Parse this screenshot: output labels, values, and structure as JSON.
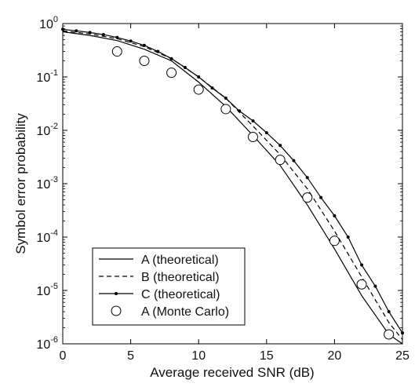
{
  "chart_data": {
    "type": "line",
    "xlabel": "Average received SNR (dB)",
    "ylabel": "Symbol error probability",
    "xlim": [
      0,
      25
    ],
    "ylim": [
      1e-06,
      1
    ],
    "yscale": "log",
    "grid": false,
    "legend_placement": "bottom-left",
    "x_ticks": [
      0,
      5,
      10,
      15,
      20,
      25
    ],
    "x_tick_labels": [
      "0",
      "5",
      "10",
      "15",
      "20",
      "25"
    ],
    "y_ticks": [
      {
        "value": 1,
        "base": "10",
        "exp": "0"
      },
      {
        "value": 0.1,
        "base": "10",
        "exp": "-1"
      },
      {
        "value": 0.01,
        "base": "10",
        "exp": "-2"
      },
      {
        "value": 0.001,
        "base": "10",
        "exp": "-3"
      },
      {
        "value": 0.0001,
        "base": "10",
        "exp": "-4"
      },
      {
        "value": 1e-05,
        "base": "10",
        "exp": "-5"
      },
      {
        "value": 1e-06,
        "base": "10",
        "exp": "-6"
      }
    ],
    "series": [
      {
        "name": "A (theoretical)",
        "style": "solid",
        "x": [
          0,
          2,
          4,
          6,
          8,
          10,
          12,
          14,
          16,
          18,
          20,
          22,
          24,
          25
        ],
        "y": [
          0.7,
          0.6,
          0.48,
          0.33,
          0.2,
          0.08,
          0.028,
          0.008,
          0.0022,
          0.0004,
          6e-05,
          8e-06,
          1.5e-06,
          1e-06
        ]
      },
      {
        "name": "B (theoretical)",
        "style": "dashed",
        "x": [
          0,
          2,
          4,
          6,
          8,
          10,
          12,
          14,
          16,
          18,
          20,
          22,
          24,
          25
        ],
        "y": [
          0.73,
          0.64,
          0.52,
          0.37,
          0.22,
          0.1,
          0.04,
          0.012,
          0.0035,
          0.0008,
          0.00013,
          1.8e-05,
          2.5e-06,
          1.2e-06
        ]
      },
      {
        "name": "C (theoretical)",
        "style": "solid-dot",
        "x": [
          0,
          1,
          2,
          3,
          4,
          5,
          6,
          7,
          8,
          9,
          10,
          11,
          12,
          13,
          14,
          15,
          16,
          17,
          18,
          19,
          20,
          21,
          22,
          23,
          24,
          25
        ],
        "y": [
          0.78,
          0.73,
          0.68,
          0.62,
          0.55,
          0.47,
          0.39,
          0.3,
          0.22,
          0.15,
          0.1,
          0.062,
          0.04,
          0.023,
          0.015,
          0.009,
          0.0052,
          0.0027,
          0.0013,
          0.00055,
          0.00025,
          0.0001,
          3e-05,
          1.2e-05,
          4e-06,
          1.6e-06
        ]
      },
      {
        "name": "A (Monte Carlo)",
        "style": "circle",
        "x": [
          4,
          6,
          8,
          10,
          12,
          14,
          16,
          18,
          20,
          22,
          24
        ],
        "y": [
          0.3,
          0.2,
          0.12,
          0.058,
          0.025,
          0.0075,
          0.0028,
          0.00055,
          8.5e-05,
          1.3e-05,
          1.5e-06
        ]
      }
    ]
  }
}
